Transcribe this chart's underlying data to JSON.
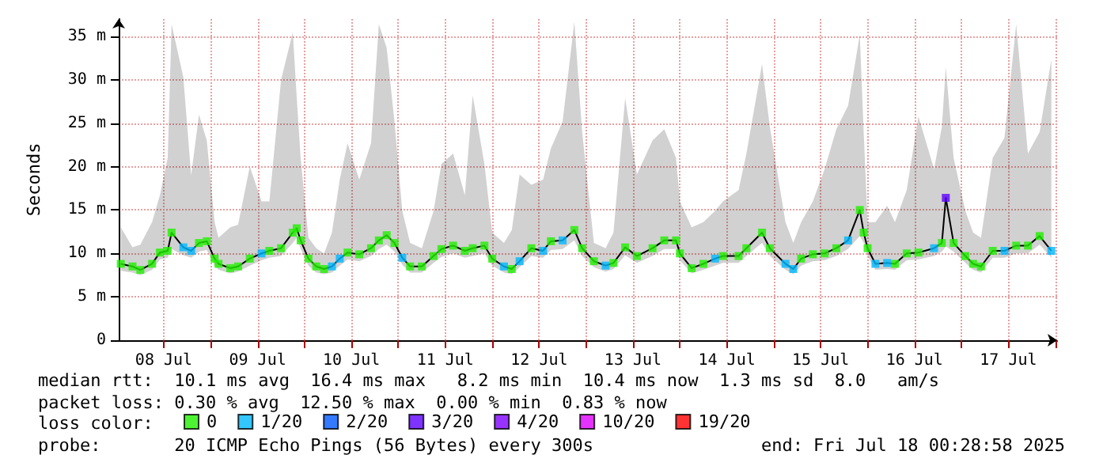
{
  "chart_data": {
    "type": "line",
    "ylabel": "Seconds",
    "legend_title": "loss color:",
    "legend": "bottom",
    "grid": true,
    "marker": "square",
    "annotations": [
      "median rtt:  10.1 ms avg  16.4 ms max   8.2 ms min  10.4 ms now  1.3 ms sd  8.0   am/s",
      "packet loss: 0.30 % avg  12.50 % max  0.00 % min  0.83 % now",
      "probe:       20 ICMP Echo Pings (56 Bytes) every 300s",
      "end: Fri Jul 18 00:28:58 2025"
    ],
    "xlim": [
      "2025-07-08T00:28",
      "2025-07-18T00:28"
    ],
    "xticks": [
      {
        "value": "2025-07-08T12:00",
        "label": "08 Jul"
      },
      {
        "value": "2025-07-09T00:00",
        "label": null
      },
      {
        "value": "2025-07-09T12:00",
        "label": "09 Jul"
      },
      {
        "value": "2025-07-10T00:00",
        "label": null
      },
      {
        "value": "2025-07-10T12:00",
        "label": "10 Jul"
      },
      {
        "value": "2025-07-11T00:00",
        "label": null
      },
      {
        "value": "2025-07-11T12:00",
        "label": "11 Jul"
      },
      {
        "value": "2025-07-12T00:00",
        "label": null
      },
      {
        "value": "2025-07-12T12:00",
        "label": "12 Jul"
      },
      {
        "value": "2025-07-13T00:00",
        "label": null
      },
      {
        "value": "2025-07-13T12:00",
        "label": "13 Jul"
      },
      {
        "value": "2025-07-14T00:00",
        "label": null
      },
      {
        "value": "2025-07-14T12:00",
        "label": "14 Jul"
      },
      {
        "value": "2025-07-15T00:00",
        "label": null
      },
      {
        "value": "2025-07-15T12:00",
        "label": "15 Jul"
      },
      {
        "value": "2025-07-16T00:00",
        "label": null
      },
      {
        "value": "2025-07-16T12:00",
        "label": "16 Jul"
      },
      {
        "value": "2025-07-17T00:00",
        "label": null
      },
      {
        "value": "2025-07-17T12:00",
        "label": "17 Jul"
      },
      {
        "value": "2025-07-18T00:00",
        "label": null
      }
    ],
    "ylim": [
      0,
      37
    ],
    "yticks": [
      0,
      {
        "value": 5,
        "label": "5 m"
      },
      {
        "value": 10,
        "label": "10 m"
      },
      {
        "value": 15,
        "label": "15 m"
      },
      {
        "value": 20,
        "label": "20 m"
      },
      {
        "value": 25,
        "label": "25 m"
      },
      {
        "value": 30,
        "label": "30 m"
      },
      {
        "value": 35,
        "label": "35 m"
      }
    ],
    "x": [
      "2025-07-08T01:00",
      "2025-07-08T04:00",
      "2025-07-08T06:00",
      "2025-07-08T09:00",
      "2025-07-08T11:00",
      "2025-07-08T13:00",
      "2025-07-08T14:00",
      "2025-07-08T17:00",
      "2025-07-08T19:00",
      "2025-07-08T21:00",
      "2025-07-08T23:00",
      "2025-07-09T01:00",
      "2025-07-09T02:00",
      "2025-07-09T05:00",
      "2025-07-09T07:00",
      "2025-07-09T10:00",
      "2025-07-09T13:00",
      "2025-07-09T15:00",
      "2025-07-09T18:00",
      "2025-07-09T21:00",
      "2025-07-09T22:00",
      "2025-07-09T23:00",
      "2025-07-10T01:00",
      "2025-07-10T03:00",
      "2025-07-10T05:00",
      "2025-07-10T07:00",
      "2025-07-10T09:00",
      "2025-07-10T11:00",
      "2025-07-10T14:00",
      "2025-07-10T17:00",
      "2025-07-10T19:00",
      "2025-07-10T21:00",
      "2025-07-10T23:00",
      "2025-07-11T01:00",
      "2025-07-11T03:00",
      "2025-07-11T06:00",
      "2025-07-11T09:00",
      "2025-07-11T11:00",
      "2025-07-11T14:00",
      "2025-07-11T17:00",
      "2025-07-11T19:00",
      "2025-07-11T22:00",
      "2025-07-12T00:00",
      "2025-07-12T03:00",
      "2025-07-12T05:00",
      "2025-07-12T07:00",
      "2025-07-12T10:00",
      "2025-07-12T13:00",
      "2025-07-12T15:00",
      "2025-07-12T18:00",
      "2025-07-12T21:00",
      "2025-07-12T23:00",
      "2025-07-13T02:00",
      "2025-07-13T05:00",
      "2025-07-13T07:00",
      "2025-07-13T10:00",
      "2025-07-13T13:00",
      "2025-07-13T17:00",
      "2025-07-13T20:00",
      "2025-07-13T23:00",
      "2025-07-14T00:00",
      "2025-07-14T03:00",
      "2025-07-14T06:00",
      "2025-07-14T09:00",
      "2025-07-14T11:00",
      "2025-07-14T15:00",
      "2025-07-14T17:00",
      "2025-07-14T21:00",
      "2025-07-14T23:00",
      "2025-07-15T03:00",
      "2025-07-15T05:00",
      "2025-07-15T07:00",
      "2025-07-15T10:00",
      "2025-07-15T13:00",
      "2025-07-15T16:00",
      "2025-07-15T19:00",
      "2025-07-15T22:00",
      "2025-07-15T23:00",
      "2025-07-16T00:00",
      "2025-07-16T02:00",
      "2025-07-16T05:00",
      "2025-07-16T07:00",
      "2025-07-16T10:00",
      "2025-07-16T13:00",
      "2025-07-16T17:00",
      "2025-07-16T19:00",
      "2025-07-16T20:00",
      "2025-07-16T22:00",
      "2025-07-17T01:00",
      "2025-07-17T03:00",
      "2025-07-17T05:00",
      "2025-07-17T08:00",
      "2025-07-17T11:00",
      "2025-07-17T14:00",
      "2025-07-17T17:00",
      "2025-07-17T20:00",
      "2025-07-17T23:00"
    ],
    "series": [
      {
        "color": "#000000",
        "marker": "none",
        "values": [
          8.8,
          8.5,
          8.1,
          8.8,
          10.1,
          10.3,
          12.4,
          10.7,
          10.3,
          11.2,
          11.4,
          9.4,
          8.8,
          8.3,
          8.5,
          9.4,
          10.0,
          10.3,
          10.6,
          12.4,
          12.9,
          11.5,
          9.4,
          8.5,
          8.2,
          8.5,
          9.4,
          10.1,
          9.9,
          10.6,
          11.5,
          12.1,
          11.2,
          9.5,
          8.5,
          8.5,
          9.7,
          10.5,
          10.9,
          10.3,
          10.6,
          10.9,
          9.4,
          8.5,
          8.2,
          9.1,
          10.6,
          10.3,
          11.4,
          11.5,
          12.7,
          10.6,
          9.1,
          8.6,
          8.9,
          10.7,
          9.7,
          10.6,
          11.5,
          11.5,
          10.0,
          8.3,
          8.8,
          9.4,
          9.7,
          9.7,
          10.6,
          12.4,
          10.6,
          8.8,
          8.2,
          9.4,
          9.9,
          10.0,
          10.6,
          11.5,
          15.0,
          12.4,
          10.6,
          8.8,
          8.9,
          8.8,
          10.0,
          10.1,
          10.6,
          11.2,
          16.4,
          11.2,
          9.7,
          8.8,
          8.5,
          10.3,
          10.3,
          10.9,
          10.9,
          12.0,
          10.3
        ],
        "upper": [
          13,
          10.7,
          11,
          13.6,
          16.7,
          21,
          36.4,
          30.3,
          19,
          26,
          23,
          13.6,
          11.8,
          13,
          13.3,
          20,
          16,
          16,
          30,
          35.5,
          28,
          21,
          11.8,
          10.6,
          10,
          12.4,
          18.5,
          22.7,
          18.5,
          22.7,
          36.4,
          33.7,
          25.2,
          14.9,
          11.2,
          10.6,
          14.9,
          20.3,
          21.5,
          16.7,
          28.2,
          20.3,
          12.4,
          11.2,
          12.7,
          19.1,
          17.9,
          18.5,
          22.1,
          25.2,
          36.7,
          24,
          11.2,
          10.6,
          12.4,
          27.9,
          19.1,
          23,
          24.3,
          21,
          16,
          13,
          13.6,
          14.9,
          16,
          17.3,
          21.5,
          31.8,
          24.6,
          13.6,
          11.2,
          13.6,
          16,
          19.7,
          24.3,
          27,
          35.2,
          24,
          13.6,
          13.6,
          15.5,
          13.6,
          17.3,
          25.8,
          19.7,
          24.6,
          31.5,
          21,
          14.9,
          12.4,
          11.8,
          21,
          23.3,
          36.4,
          21.5,
          24,
          32.4
        ],
        "lower": [
          8.0,
          7.8,
          7.5,
          8.1,
          9.3,
          9.5,
          10.5,
          9.8,
          9.5,
          10.2,
          10.4,
          8.6,
          8.1,
          7.7,
          7.9,
          8.6,
          9.2,
          9.5,
          9.7,
          11.2,
          11.8,
          10.5,
          8.6,
          7.8,
          7.6,
          7.8,
          8.6,
          9.3,
          9.1,
          9.7,
          10.5,
          11.0,
          10.2,
          8.7,
          7.8,
          7.8,
          8.9,
          9.6,
          10.0,
          9.5,
          9.7,
          10.0,
          8.6,
          7.8,
          7.6,
          8.4,
          9.7,
          9.5,
          10.4,
          10.5,
          11.5,
          9.7,
          8.4,
          7.9,
          8.2,
          9.8,
          8.9,
          9.7,
          10.5,
          10.5,
          9.2,
          7.7,
          8.1,
          8.6,
          8.9,
          8.9,
          9.7,
          11.2,
          9.7,
          8.1,
          7.6,
          8.6,
          9.1,
          9.2,
          9.7,
          10.5,
          12.0,
          11.2,
          9.7,
          8.1,
          8.2,
          8.1,
          9.2,
          9.3,
          9.7,
          10.2,
          10.8,
          10.2,
          8.9,
          8.1,
          7.8,
          9.5,
          9.5,
          10.0,
          10.0,
          11.0,
          9.5
        ]
      },
      {
        "type": "scatter",
        "name": "0",
        "color": "#20f000",
        "values": [
          8.8,
          8.5,
          8.1,
          8.8,
          10.1,
          10.3,
          12.4,
          null,
          null,
          11.2,
          11.4,
          9.4,
          8.8,
          8.3,
          8.5,
          9.4,
          null,
          10.3,
          10.6,
          12.4,
          12.9,
          11.5,
          9.4,
          8.5,
          8.2,
          null,
          null,
          10.1,
          9.9,
          10.6,
          11.5,
          12.1,
          11.2,
          null,
          8.5,
          8.5,
          9.7,
          10.5,
          10.9,
          10.3,
          10.6,
          10.9,
          9.4,
          null,
          8.2,
          null,
          10.6,
          null,
          11.4,
          null,
          12.7,
          10.6,
          9.1,
          null,
          8.9,
          10.7,
          9.7,
          10.6,
          11.5,
          11.5,
          10.0,
          8.3,
          8.8,
          null,
          9.7,
          9.7,
          10.6,
          12.4,
          10.6,
          null,
          null,
          9.4,
          9.9,
          10.0,
          10.6,
          null,
          15.0,
          12.4,
          10.6,
          null,
          null,
          8.8,
          10.0,
          10.1,
          null,
          11.2,
          null,
          11.2,
          9.7,
          8.8,
          8.5,
          10.3,
          null,
          10.9,
          10.9,
          12.0,
          null
        ]
      },
      {
        "type": "scatter",
        "name": "1/20",
        "color": "#00b8ff",
        "values": [
          null,
          null,
          null,
          null,
          null,
          null,
          null,
          10.7,
          10.3,
          null,
          null,
          null,
          null,
          null,
          null,
          null,
          10.0,
          null,
          null,
          null,
          null,
          null,
          null,
          null,
          null,
          8.5,
          9.4,
          null,
          null,
          null,
          null,
          null,
          null,
          9.5,
          null,
          null,
          null,
          null,
          null,
          null,
          null,
          null,
          null,
          8.5,
          null,
          9.1,
          null,
          10.3,
          null,
          11.5,
          null,
          null,
          null,
          8.6,
          null,
          null,
          null,
          null,
          null,
          null,
          null,
          null,
          null,
          9.4,
          null,
          null,
          null,
          null,
          null,
          8.8,
          8.2,
          null,
          null,
          null,
          null,
          11.5,
          null,
          null,
          null,
          8.8,
          8.9,
          null,
          null,
          null,
          10.6,
          null,
          null,
          null,
          null,
          null,
          null,
          null,
          10.3,
          null,
          null,
          null,
          10.3
        ]
      },
      {
        "type": "scatter",
        "name": "2/20",
        "color": "#0059ff",
        "values": [
          null,
          null,
          null,
          null,
          null,
          null,
          null,
          null,
          null,
          null,
          null,
          null,
          null,
          null,
          null,
          null,
          null,
          null,
          null,
          null,
          null,
          null,
          null,
          null,
          null,
          null,
          null,
          null,
          null,
          null,
          null,
          null,
          null,
          null,
          null,
          null,
          null,
          null,
          null,
          null,
          null,
          null,
          null,
          null,
          null,
          null,
          null,
          null,
          null,
          null,
          null,
          null,
          null,
          null,
          null,
          null,
          null,
          null,
          null,
          null,
          null,
          null,
          null,
          null,
          null,
          null,
          null,
          null,
          null,
          null,
          null,
          null,
          null,
          null,
          null,
          null,
          null,
          null,
          null,
          null,
          null,
          null,
          null,
          null,
          null,
          null,
          null,
          null,
          null,
          null,
          null,
          null,
          null,
          null,
          null,
          null,
          null
        ]
      },
      {
        "type": "scatter",
        "name": "3/20",
        "color": "#5e00ff",
        "x": [
          "2025-07-16T20:00"
        ],
        "values": [
          16.4
        ]
      },
      {
        "type": "scatter",
        "name": "4/20",
        "color": "#7e00ff",
        "values": [
          null,
          null,
          null,
          null,
          null,
          null,
          null,
          null,
          null,
          null,
          null,
          null,
          null,
          null,
          null,
          null,
          null,
          null,
          null,
          null,
          null,
          null,
          null,
          null,
          null,
          null,
          null,
          null,
          null,
          null,
          null,
          null,
          null,
          null,
          null,
          null,
          null,
          null,
          null,
          null,
          null,
          null,
          null,
          null,
          null,
          null,
          null,
          null,
          null,
          null,
          null,
          null,
          null,
          null,
          null,
          null,
          null,
          null,
          null,
          null,
          null,
          null,
          null,
          null,
          null,
          null,
          null,
          null,
          null,
          null,
          null,
          null,
          null,
          null,
          null,
          null,
          null,
          null,
          null,
          null,
          null,
          null,
          null,
          null,
          null,
          null,
          null,
          null,
          null,
          null,
          null,
          null,
          null,
          null,
          null,
          null,
          null
        ]
      },
      {
        "type": "scatter",
        "name": "10/20",
        "color": "#dd00ff",
        "values": [
          null,
          null,
          null,
          null,
          null,
          null,
          null,
          null,
          null,
          null,
          null,
          null,
          null,
          null,
          null,
          null,
          null,
          null,
          null,
          null,
          null,
          null,
          null,
          null,
          null,
          null,
          null,
          null,
          null,
          null,
          null,
          null,
          null,
          null,
          null,
          null,
          null,
          null,
          null,
          null,
          null,
          null,
          null,
          null,
          null,
          null,
          null,
          null,
          null,
          null,
          null,
          null,
          null,
          null,
          null,
          null,
          null,
          null,
          null,
          null,
          null,
          null,
          null,
          null,
          null,
          null,
          null,
          null,
          null,
          null,
          null,
          null,
          null,
          null,
          null,
          null,
          null,
          null,
          null,
          null,
          null,
          null,
          null,
          null,
          null,
          null,
          null,
          null,
          null,
          null,
          null,
          null,
          null,
          null,
          null,
          null,
          null
        ]
      },
      {
        "type": "scatter",
        "name": "19/20",
        "color": "#ff0000",
        "values": [
          null,
          null,
          null,
          null,
          null,
          null,
          null,
          null,
          null,
          null,
          null,
          null,
          null,
          null,
          null,
          null,
          null,
          null,
          null,
          null,
          null,
          null,
          null,
          null,
          null,
          null,
          null,
          null,
          null,
          null,
          null,
          null,
          null,
          null,
          null,
          null,
          null,
          null,
          null,
          null,
          null,
          null,
          null,
          null,
          null,
          null,
          null,
          null,
          null,
          null,
          null,
          null,
          null,
          null,
          null,
          null,
          null,
          null,
          null,
          null,
          null,
          null,
          null,
          null,
          null,
          null,
          null,
          null,
          null,
          null,
          null,
          null,
          null,
          null,
          null,
          null,
          null,
          null,
          null,
          null,
          null,
          null,
          null,
          null,
          null,
          null,
          null,
          null,
          null,
          null,
          null,
          null,
          null,
          null,
          null,
          null,
          null
        ]
      }
    ]
  }
}
